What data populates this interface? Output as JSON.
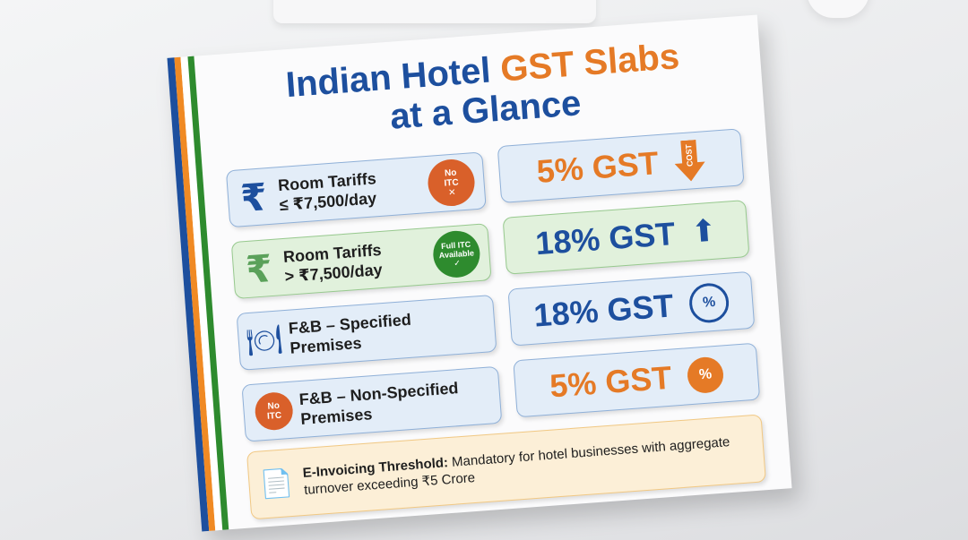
{
  "title": {
    "line1_part1": "Indian Hotel ",
    "line1_part2": "GST Slabs",
    "line2": "at a Glance"
  },
  "colors": {
    "blue": "#1d4f9e",
    "orange": "#e57a26",
    "green": "#2e8b2e",
    "red_badge": "#d9602a"
  },
  "rows": [
    {
      "label_line1": "Room Tariffs",
      "label_line2": "≤ ₹7,500/day",
      "icon": "rupee-icon",
      "badge": "No ITC",
      "badge_icon": "x-circle-icon",
      "rate": "5% GST",
      "rate_icon": "cost-down-arrow-icon"
    },
    {
      "label_line1": "Room Tariffs",
      "label_line2": "> ₹7,500/day",
      "icon": "rupee-icon",
      "badge": "Full ITC Available",
      "badge_icon": "check-circle-icon",
      "rate": "18% GST",
      "rate_icon": "percent-up-arrow-icon"
    },
    {
      "label_line1": "F&B – Specified",
      "label_line2": "Premises",
      "icon": "plate-fork-knife-icon",
      "rate": "18% GST",
      "rate_icon": "percent-rosette-icon"
    },
    {
      "label_line1": "F&B – Non-Specified",
      "label_line2": "Premises",
      "icon": "fork-knife-no-itc-icon",
      "badge": "No ITC",
      "rate": "5% GST",
      "rate_icon": "percent-seal-icon"
    }
  ],
  "note": {
    "bold": "E-Invoicing Threshold:",
    "text": " Mandatory for hotel businesses with aggregate turnover exceeding ₹5 Crore",
    "icon": "invoice-check-icon"
  },
  "symbols": {
    "rupee": "₹",
    "percent": "%",
    "cost": "COST",
    "check": "✓",
    "cross": "✕"
  }
}
